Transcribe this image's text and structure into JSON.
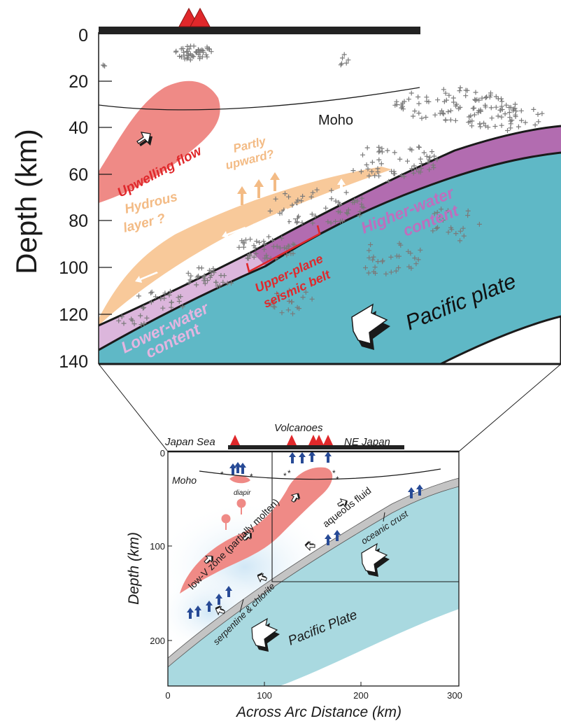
{
  "upper_panel": {
    "ylabel": "Depth (km)",
    "y_ticks": [
      "0",
      "20",
      "40",
      "60",
      "80",
      "100",
      "120",
      "140"
    ],
    "labels": {
      "moho": "Moho",
      "upwelling_flow": "Upwelling flow",
      "partly_upward_1": "Partly",
      "partly_upward_2": "upward?",
      "hydrous_layer_1": "Hydrous",
      "hydrous_layer_2": "layer ?",
      "higher_water_1": "Higher-water",
      "higher_water_2": "content",
      "upper_plane_1": "Upper-plane",
      "upper_plane_2": "seismic belt",
      "lower_water_1": "Lower-water",
      "lower_water_2": "content",
      "pacific_plate": "Pacific plate"
    },
    "colors": {
      "upwelling": "#ef8a86",
      "hydrous": "#f8c99a",
      "higher_water": "#b26cb0",
      "lower_water": "#dcb6dc",
      "plate": "#5fb8c6",
      "seismicity": "#7a7a7a",
      "label_red": "#e0282b",
      "label_orange": "#f3bb85",
      "label_purple": "#bd6fbd",
      "label_pink": "#e3b5e0"
    }
  },
  "lower_panel": {
    "xlabel": "Across Arc Distance (km)",
    "ylabel": "Depth (km)",
    "x_ticks": [
      "0",
      "100",
      "200",
      "300"
    ],
    "y_ticks": [
      "0",
      "100",
      "200"
    ],
    "labels": {
      "japan_sea": "Japan Sea",
      "volcanoes": "Volcanoes",
      "ne_japan": "NE Japan",
      "moho": "Moho",
      "diapir": "diapir",
      "low_v_zone": "low-V zone (partially molten)",
      "aqueous_fluid": "aqueous fluid",
      "oceanic_crust": "oceanic crust",
      "serpentine": "serpentine & chlorite",
      "pacific_plate": "Pacific Plate"
    },
    "colors": {
      "low_v": "#ef8a86",
      "slab": "#a9d9e0",
      "crust": "#b8b8b8",
      "arrows": "#274a96",
      "volcano": "#e0282b"
    }
  }
}
